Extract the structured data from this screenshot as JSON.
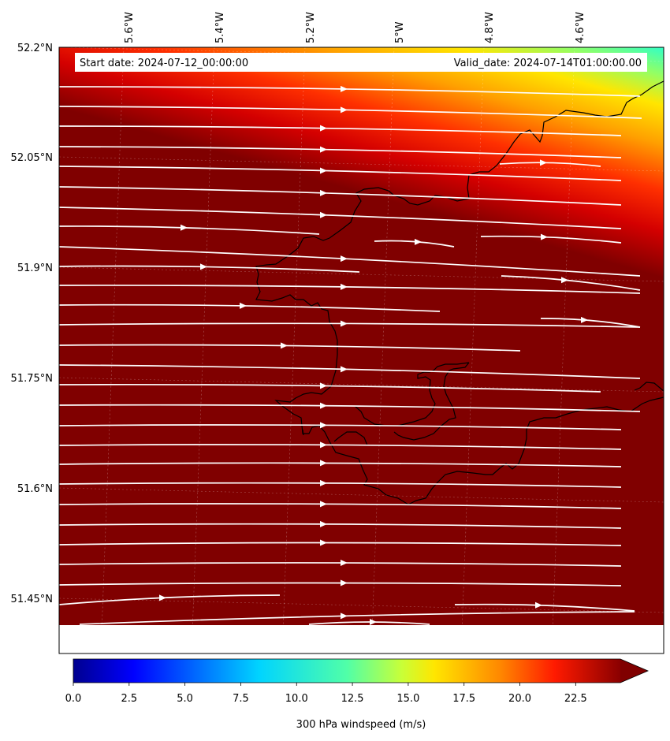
{
  "chart_data": {
    "type": "heatmap",
    "title": "",
    "projection": "map",
    "annotations": {
      "start_date": "Start date: 2024-07-12_00:00:00",
      "valid_date": "Valid_date: 2024-07-14T01:00:00.00"
    },
    "lon_ticks": [
      "5.6°W",
      "5.4°W",
      "5.2°W",
      "5°W",
      "4.8°W",
      "4.6°W"
    ],
    "lat_ticks": [
      "52.2°N",
      "52.05°N",
      "51.9°N",
      "51.75°N",
      "51.6°N",
      "51.45°N"
    ],
    "lon_range": [
      -5.75,
      -4.4
    ],
    "lat_range": [
      51.38,
      52.2
    ],
    "field": "300 hPa windspeed",
    "units": "m/s",
    "gridlines": true,
    "colorbar": {
      "label": "300 hPa windspeed (m/s)",
      "ticks": [
        "0.0",
        "2.5",
        "5.0",
        "7.5",
        "10.0",
        "12.5",
        "15.0",
        "17.5",
        "20.0",
        "22.5"
      ],
      "vmin": 0,
      "vmax": 24.5,
      "extend": "max",
      "colormap": "jet"
    },
    "wind_field": {
      "max_speed_ms": 24.5,
      "min_speed_ms": 13.5,
      "min_location": "top-right",
      "direction": "westerly"
    },
    "streamlines": "white",
    "coastline_color": "#000000"
  }
}
